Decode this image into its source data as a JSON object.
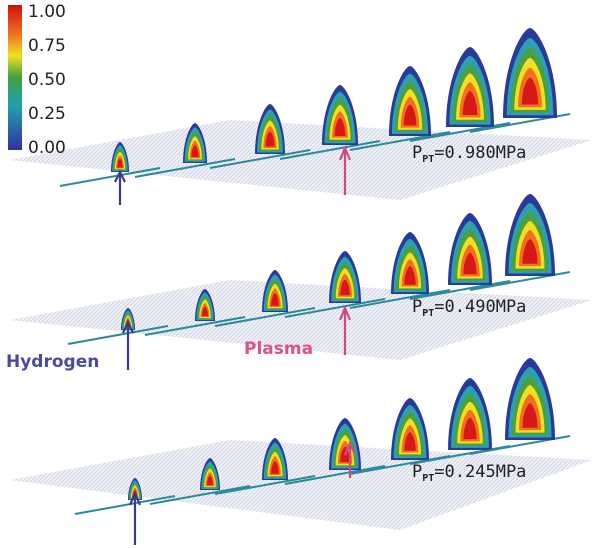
{
  "colorbar": {
    "labels": [
      "1.00",
      "0.75",
      "0.50",
      "0.25",
      "0.00"
    ]
  },
  "panels": [
    {
      "symbol": "P",
      "subscript": "PT",
      "value": "=0.980MPa"
    },
    {
      "symbol": "P",
      "subscript": "PT",
      "value": "=0.490MPa"
    },
    {
      "symbol": "P",
      "subscript": "PT",
      "value": "=0.245MPa"
    }
  ],
  "annotations": {
    "hydrogen": "Hydrogen",
    "plasma": "Plasma"
  }
}
